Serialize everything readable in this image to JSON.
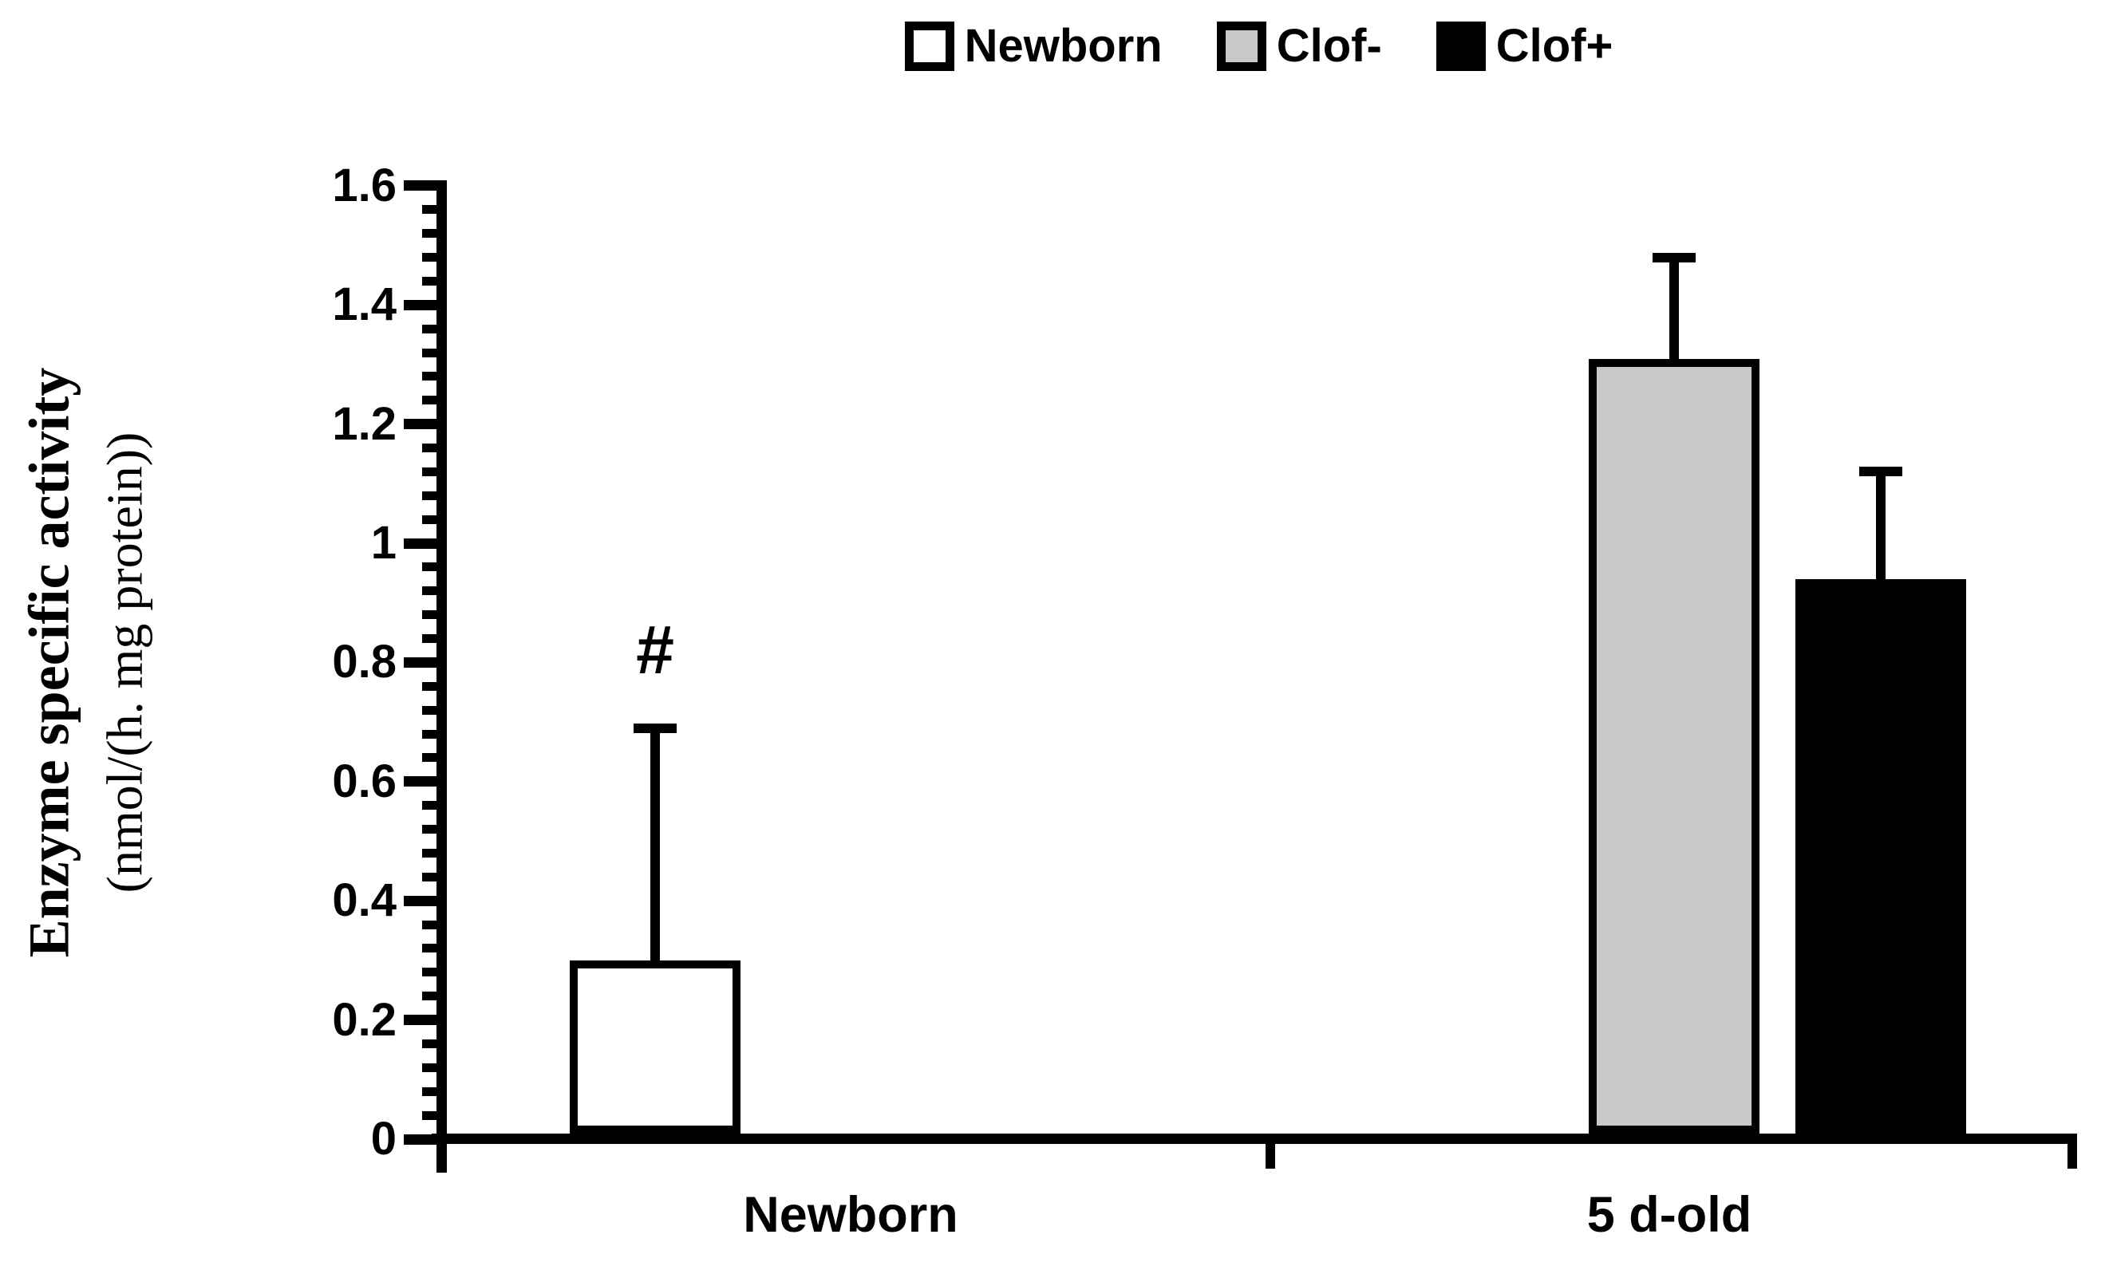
{
  "legend": {
    "items": [
      {
        "label": "Newborn",
        "color": "#ffffff"
      },
      {
        "label": "Clof-",
        "color": "#c9c9c9"
      },
      {
        "label": "Clof+",
        "color": "#000000"
      }
    ]
  },
  "y_axis": {
    "title_line1": "Enzyme specific activity",
    "title_line2": "(nmol/(h. mg protein))",
    "tick_labels": [
      "0",
      "0.2",
      "0.4",
      "0.6",
      "0.8",
      "1",
      "1.2",
      "1.4",
      "1.6"
    ]
  },
  "x_axis": {
    "categories": [
      "Newborn",
      "5 d-old"
    ]
  },
  "annotation": {
    "symbol": "#"
  },
  "colors": {
    "axis": "#000000",
    "bar_border": "#000000",
    "newborn_fill": "#ffffff",
    "clof_minus_fill": "#c9c9c9",
    "clof_plus_fill": "#000000"
  },
  "chart_data": {
    "type": "bar",
    "categories": [
      "Newborn",
      "5 d-old"
    ],
    "series": [
      {
        "name": "Newborn",
        "fill": "#ffffff",
        "values": [
          0.3,
          null
        ],
        "errors": [
          0.39,
          null
        ]
      },
      {
        "name": "Clof-",
        "fill": "#c9c9c9",
        "values": [
          null,
          1.31
        ],
        "errors": [
          null,
          0.17
        ]
      },
      {
        "name": "Clof+",
        "fill": "#000000",
        "values": [
          null,
          0.94
        ],
        "errors": [
          null,
          0.18
        ]
      }
    ],
    "title": "",
    "xlabel": "",
    "ylabel": "Enzyme specific activity (nmol/(h. mg protein))",
    "ylim": [
      0,
      1.6
    ],
    "ytick_step": 0.2,
    "minor_tick_step": 0.04,
    "error_bars": "upper only, with caps",
    "grid": false,
    "legend_position": "top center",
    "annotations": [
      {
        "text": "#",
        "category": "Newborn",
        "series": "Newborn",
        "position": "above error bar"
      }
    ]
  }
}
